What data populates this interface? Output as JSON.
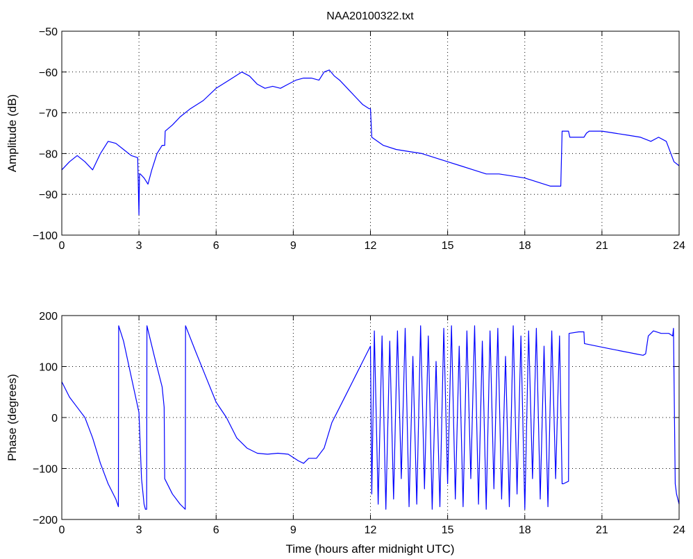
{
  "chart_data": [
    {
      "type": "line",
      "title": "NAA20100322.txt",
      "xlabel": "",
      "ylabel": "Amplitude (dB)",
      "xlim": [
        0,
        24
      ],
      "ylim": [
        -100,
        -50
      ],
      "xticks": [
        0,
        3,
        6,
        9,
        12,
        15,
        18,
        21,
        24
      ],
      "xtick_labels": [
        "0",
        "3",
        "6",
        "9",
        "12",
        "15",
        "18",
        "21",
        "24"
      ],
      "yticks": [
        -100,
        -90,
        -80,
        -70,
        -60,
        -50
      ],
      "ytick_labels": [
        "−100",
        "−90",
        "−80",
        "−70",
        "−60",
        "−50"
      ],
      "grid": true,
      "line_color": "#0000ff",
      "series": [
        {
          "x": [
            0,
            0.3,
            0.6,
            0.9,
            1.2,
            1.5,
            1.8,
            2.1,
            2.4,
            2.7,
            2.95,
            3.0,
            3.02,
            3.05,
            3.2,
            3.35,
            3.5,
            3.7,
            3.9,
            4.0,
            4.02,
            4.3,
            4.6,
            5.0,
            5.5,
            6.0,
            6.5,
            6.75,
            7.0,
            7.3,
            7.6,
            7.9,
            8.2,
            8.5,
            8.8,
            9.1,
            9.4,
            9.7,
            10.0,
            10.2,
            10.4,
            10.6,
            10.8,
            11.1,
            11.4,
            11.7,
            11.95,
            12.0,
            12.05,
            12.5,
            13.0,
            13.5,
            14.0,
            14.5,
            15.0,
            15.5,
            16.0,
            16.5,
            17.0,
            17.5,
            18.0,
            18.5,
            19.0,
            19.4,
            19.45,
            19.7,
            19.75,
            20.3,
            20.4,
            20.5,
            21.0,
            21.5,
            22.0,
            22.5,
            22.9,
            23.2,
            23.5,
            23.8,
            24.0
          ],
          "y": [
            -84,
            -82,
            -80.5,
            -82,
            -84,
            -80,
            -77,
            -77.5,
            -79,
            -80.5,
            -81,
            -95,
            -85,
            -85,
            -86,
            -87.5,
            -84,
            -80,
            -78,
            -78,
            -74.5,
            -73,
            -71,
            -69,
            -67,
            -64,
            -62,
            -61,
            -60,
            -61,
            -63,
            -64,
            -63.5,
            -64,
            -63,
            -62,
            -61.5,
            -61.5,
            -62,
            -60,
            -59.5,
            -61,
            -62,
            -64,
            -66,
            -68,
            -69,
            -69,
            -76,
            -78,
            -79,
            -79.5,
            -80,
            -81,
            -82,
            -83,
            -84,
            -85,
            -85,
            -85.5,
            -86,
            -87,
            -88,
            -88,
            -74.5,
            -74.5,
            -76,
            -76,
            -75,
            -74.5,
            -74.5,
            -75,
            -75.5,
            -76,
            -77,
            -76,
            -77,
            -82,
            -83
          ]
        }
      ]
    },
    {
      "type": "line",
      "title": "",
      "xlabel": "Time (hours after midnight UTC)",
      "ylabel": "Phase (degrees)",
      "xlim": [
        0,
        24
      ],
      "ylim": [
        -200,
        200
      ],
      "xticks": [
        0,
        3,
        6,
        9,
        12,
        15,
        18,
        21,
        24
      ],
      "xtick_labels": [
        "0",
        "3",
        "6",
        "9",
        "12",
        "15",
        "18",
        "21",
        "24"
      ],
      "yticks": [
        -200,
        -100,
        0,
        100,
        200
      ],
      "ytick_labels": [
        "−200",
        "−100",
        "0",
        "100",
        "200"
      ],
      "grid": true,
      "line_color": "#0000ff",
      "series": [
        {
          "x": [
            0,
            0.3,
            0.6,
            0.9,
            1.2,
            1.5,
            1.8,
            2.1,
            2.2,
            2.21,
            2.4,
            2.7,
            3.0,
            3.1,
            3.2,
            3.25,
            3.3,
            3.31,
            3.6,
            3.9,
            3.98,
            4.0,
            4.3,
            4.6,
            4.8,
            4.81,
            5.2,
            5.6,
            6.0,
            6.4,
            6.8,
            7.2,
            7.6,
            8.0,
            8.4,
            8.8,
            9.2,
            9.4,
            9.6,
            9.9,
            10.2,
            10.5,
            10.8,
            11.1,
            11.4,
            11.7,
            12.0,
            12.05,
            12.15,
            12.3,
            12.45,
            12.6,
            12.75,
            12.9,
            13.05,
            13.2,
            13.35,
            13.5,
            13.65,
            13.8,
            13.95,
            14.1,
            14.25,
            14.4,
            14.55,
            14.7,
            14.85,
            15.0,
            15.15,
            15.3,
            15.45,
            15.6,
            15.75,
            15.9,
            16.05,
            16.2,
            16.35,
            16.5,
            16.65,
            16.8,
            16.95,
            17.1,
            17.25,
            17.4,
            17.55,
            17.7,
            17.85,
            18.0,
            18.15,
            18.3,
            18.45,
            18.6,
            18.75,
            18.9,
            19.05,
            19.2,
            19.35,
            19.45,
            19.5,
            19.7,
            19.72,
            20.1,
            20.3,
            20.32,
            20.8,
            21.3,
            21.8,
            22.3,
            22.6,
            22.7,
            22.8,
            23.0,
            23.3,
            23.6,
            23.75,
            23.78,
            23.85,
            23.9,
            24.0
          ],
          "y": [
            70,
            40,
            20,
            0,
            -40,
            -90,
            -130,
            -160,
            -175,
            180,
            150,
            80,
            10,
            -120,
            -170,
            -180,
            -180,
            180,
            120,
            60,
            20,
            -120,
            -150,
            -170,
            -180,
            180,
            130,
            80,
            30,
            0,
            -40,
            -60,
            -70,
            -72,
            -70,
            -72,
            -85,
            -90,
            -80,
            -80,
            -60,
            -10,
            20,
            50,
            80,
            110,
            140,
            -150,
            170,
            -170,
            160,
            -180,
            150,
            -160,
            170,
            -120,
            175,
            -175,
            120,
            -170,
            180,
            -140,
            160,
            -180,
            110,
            -175,
            175,
            -130,
            180,
            -160,
            140,
            -175,
            170,
            -120,
            180,
            -170,
            150,
            -180,
            170,
            -140,
            175,
            -160,
            120,
            -175,
            180,
            -150,
            160,
            -180,
            170,
            -120,
            175,
            -160,
            140,
            -175,
            170,
            -120,
            160,
            -130,
            -130,
            -125,
            165,
            168,
            168,
            145,
            140,
            135,
            130,
            125,
            122,
            125,
            160,
            170,
            165,
            165,
            160,
            175,
            -130,
            -150,
            -170
          ]
        }
      ]
    }
  ]
}
